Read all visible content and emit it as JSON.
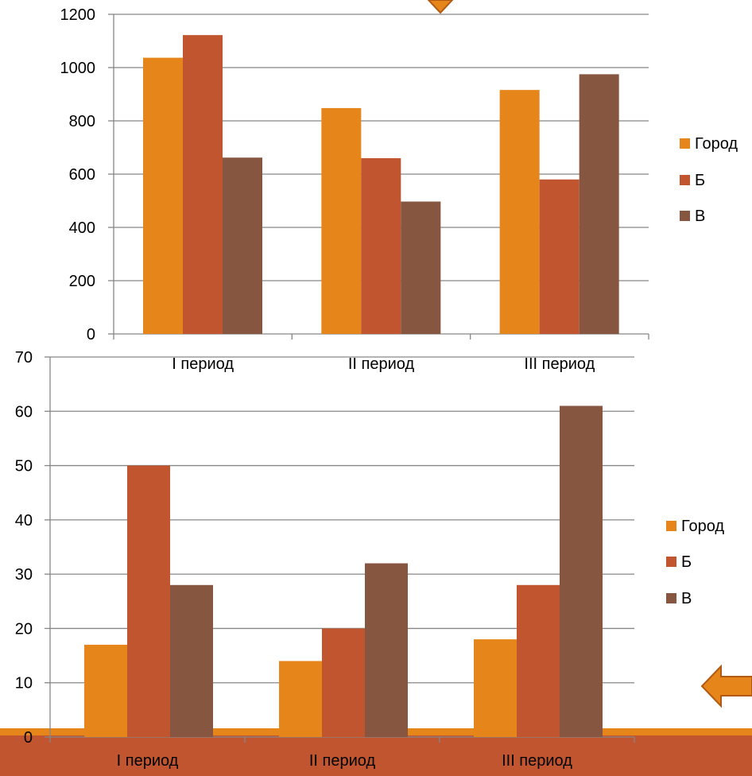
{
  "theme": {
    "background": "#ffffff",
    "band_color": "#C0552F",
    "strip_color": "#E6861A",
    "arrow_fill": "#E6861A",
    "arrow_stroke": "#B25A14",
    "axis_text_color": "#000000",
    "grid_color": "#868686",
    "axis_color": "#868686"
  },
  "chart_data": [
    {
      "type": "bar",
      "categories": [
        "I период",
        "II период",
        "III период"
      ],
      "series": [
        {
          "name": "Город",
          "values": [
            1037,
            848,
            916
          ],
          "color": "#E6861A"
        },
        {
          "name": "Б",
          "values": [
            1122,
            660,
            580
          ],
          "color": "#C0552F"
        },
        {
          "name": "В",
          "values": [
            662,
            497,
            975
          ],
          "color": "#875641"
        }
      ],
      "ylim": [
        0,
        1200
      ],
      "yticks": [
        "0",
        "200",
        "400",
        "600",
        "800",
        "1000",
        "1200"
      ],
      "grid": true,
      "legend": "right",
      "title": "",
      "xlabel": "",
      "ylabel": ""
    },
    {
      "type": "bar",
      "categories": [
        "I период",
        "II период",
        "III период"
      ],
      "series": [
        {
          "name": "Город",
          "values": [
            17,
            14,
            18
          ],
          "color": "#E6861A"
        },
        {
          "name": "Б",
          "values": [
            50,
            20,
            28
          ],
          "color": "#C0552F"
        },
        {
          "name": "В",
          "values": [
            28,
            32,
            61
          ],
          "color": "#875641"
        }
      ],
      "ylim": [
        0,
        70
      ],
      "yticks": [
        "0",
        "10",
        "20",
        "30",
        "40",
        "50",
        "60",
        "70"
      ],
      "grid": true,
      "legend": "right",
      "title": "",
      "xlabel": "",
      "ylabel": ""
    }
  ]
}
